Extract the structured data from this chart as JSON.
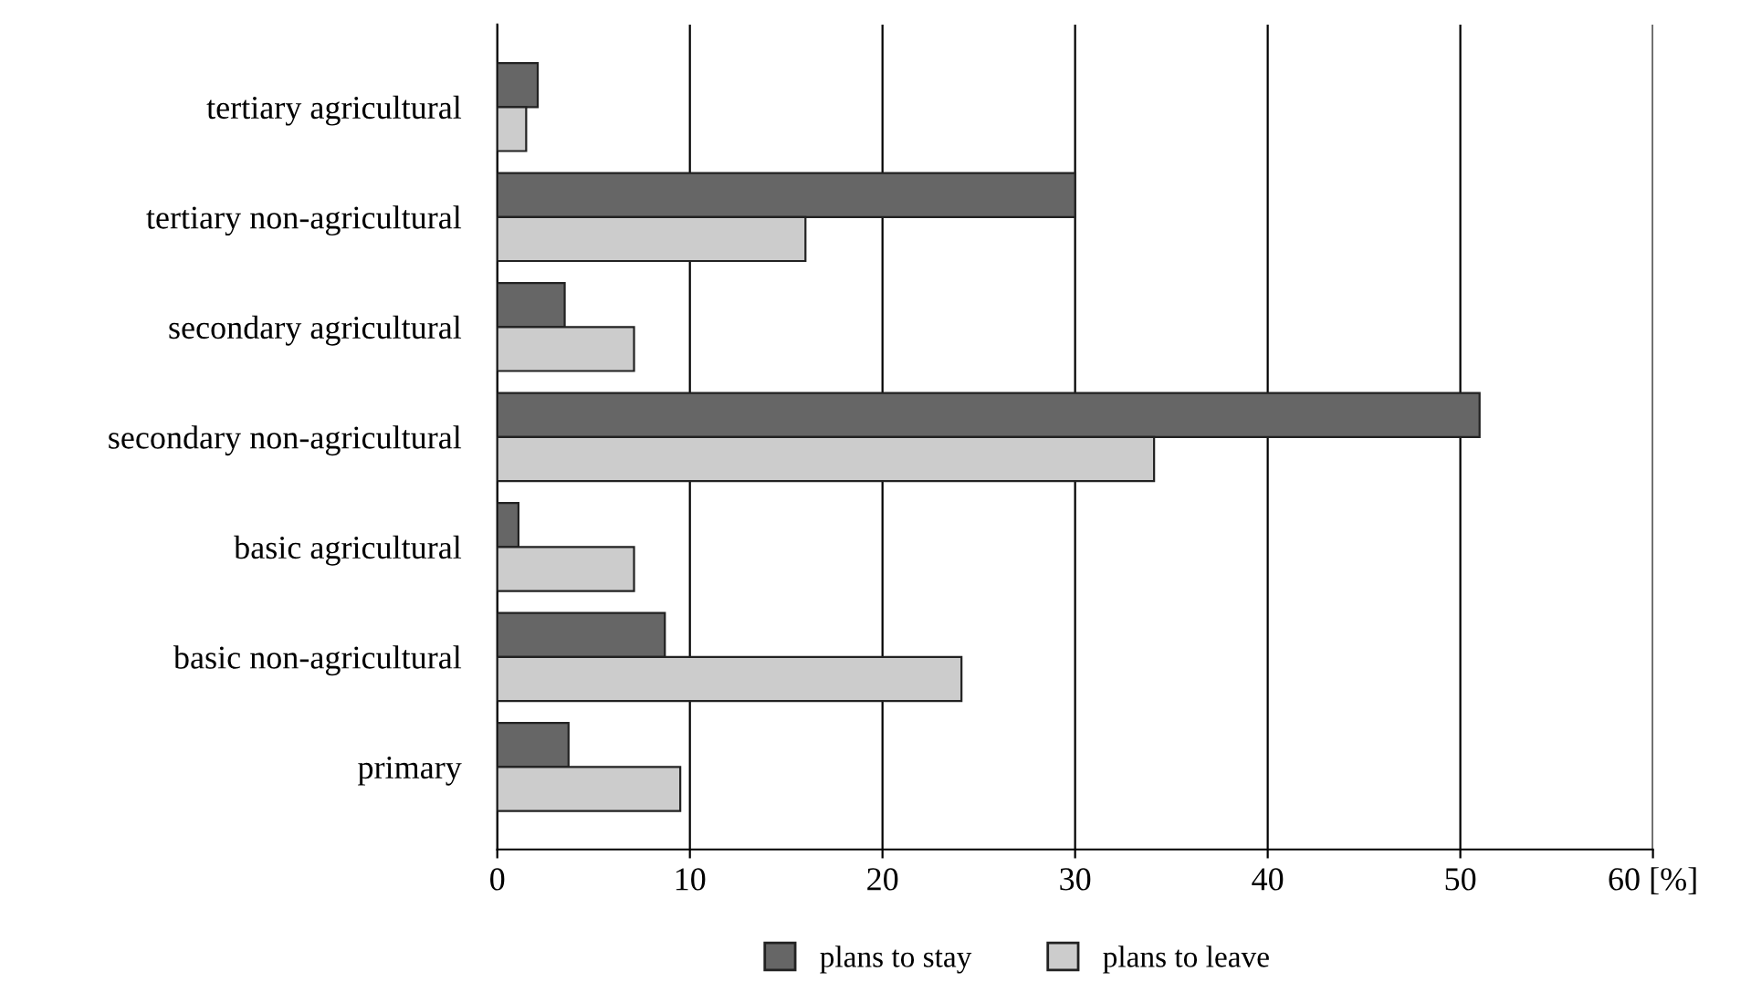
{
  "chart_data": {
    "type": "bar",
    "orientation": "horizontal",
    "categories": [
      "tertiary agricultural",
      "tertiary non-agricultural",
      "secondary agricultural",
      "secondary non-agricultural",
      "basic agricultural",
      "basic non-agricultural",
      "primary"
    ],
    "series": [
      {
        "name": "plans to stay",
        "color": "#666666",
        "values": [
          2.1,
          30,
          3.5,
          51,
          1.1,
          8.7,
          3.7
        ]
      },
      {
        "name": "plans to leave",
        "color": "#cccccc",
        "values": [
          1.5,
          16,
          7.1,
          34.1,
          7.1,
          24.1,
          9.5
        ]
      }
    ],
    "xlim": [
      0,
      60
    ],
    "xticks": [
      0,
      10,
      20,
      30,
      40,
      50,
      {
        "value": 60,
        "label": "60 [%]"
      }
    ],
    "grid": "x",
    "legend": "bottom"
  }
}
